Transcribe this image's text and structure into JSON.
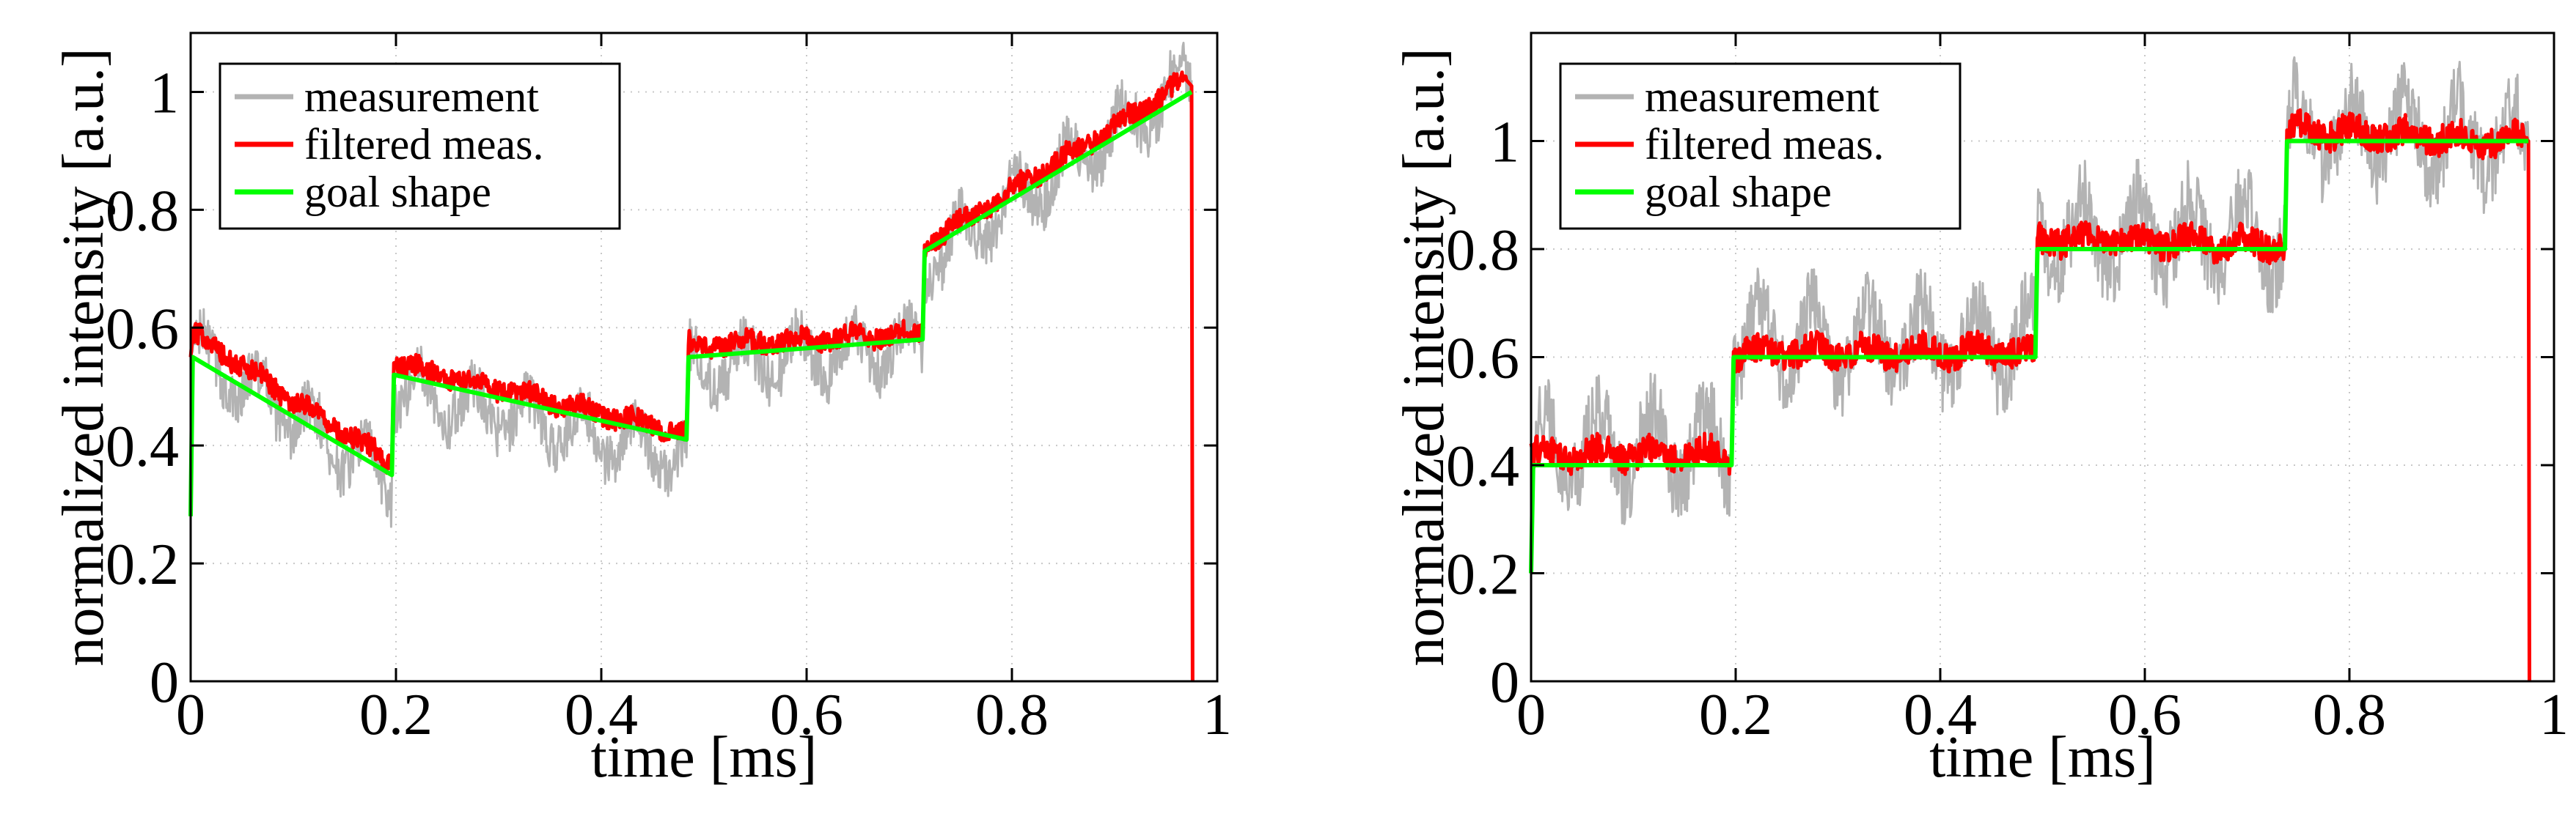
{
  "chart_data": [
    {
      "type": "line",
      "xlabel": "time [ms]",
      "ylabel": "normalized intensity [a.u.]",
      "xlim": [
        0,
        1
      ],
      "ylim": [
        0,
        1.1
      ],
      "xticks": [
        0,
        0.2,
        0.4,
        0.6,
        0.8,
        1
      ],
      "xtick_labels": [
        "0",
        "0.2",
        "0.4",
        "0.6",
        "0.8",
        "1"
      ],
      "yticks": [
        0,
        0.2,
        0.4,
        0.6,
        0.8,
        1
      ],
      "ytick_labels": [
        "0",
        "0.2",
        "0.4",
        "0.6",
        "0.8",
        "1"
      ],
      "grid": true,
      "legend_position": "top-left",
      "legend": [
        "measurement",
        "filtered meas.",
        "goal shape"
      ],
      "series": [
        {
          "name": "goal shape",
          "color": "#00ff00",
          "x": [
            0,
            0.002,
            0.196,
            0.198,
            0.483,
            0.485,
            0.713,
            0.715,
            0.975
          ],
          "y": [
            0.28,
            0.55,
            0.35,
            0.52,
            0.41,
            0.55,
            0.58,
            0.73,
            1.0
          ]
        },
        {
          "name": "filtered meas.",
          "color": "#ff0000",
          "x": [
            0,
            0.002,
            0.196,
            0.198,
            0.483,
            0.485,
            0.713,
            0.715,
            0.97,
            0.975,
            0.976
          ],
          "y": [
            0.55,
            0.59,
            0.37,
            0.54,
            0.42,
            0.57,
            0.59,
            0.74,
            1.02,
            1.01,
            0.0
          ]
        },
        {
          "name": "measurement",
          "color": "#b3b3b3",
          "x": [
            0,
            0.002,
            0.196,
            0.198,
            0.483,
            0.485,
            0.713,
            0.715,
            0.975
          ],
          "y": [
            0.55,
            0.56,
            0.34,
            0.5,
            0.38,
            0.53,
            0.57,
            0.71,
            1.02
          ]
        }
      ]
    },
    {
      "type": "line",
      "xlabel": "time [ms]",
      "ylabel": "normalized intensity [a.u.]",
      "xlim": [
        0,
        1
      ],
      "ylim": [
        0,
        1.2
      ],
      "xticks": [
        0,
        0.2,
        0.4,
        0.6,
        0.8,
        1
      ],
      "xtick_labels": [
        "0",
        "0.2",
        "0.4",
        "0.6",
        "0.8",
        "1"
      ],
      "yticks": [
        0,
        0.2,
        0.4,
        0.6,
        0.8,
        1
      ],
      "ytick_labels": [
        "0",
        "0.2",
        "0.4",
        "0.6",
        "0.8",
        "1"
      ],
      "grid": true,
      "legend_position": "top-left",
      "legend": [
        "measurement",
        "filtered meas.",
        "goal shape"
      ],
      "series": [
        {
          "name": "goal shape",
          "color": "#00ff00",
          "x": [
            0,
            0.002,
            0.196,
            0.198,
            0.493,
            0.495,
            0.737,
            0.739,
            0.975
          ],
          "y": [
            0.2,
            0.4,
            0.4,
            0.6,
            0.6,
            0.8,
            0.8,
            1.0,
            1.0
          ]
        },
        {
          "name": "filtered meas.",
          "color": "#ff0000",
          "x": [
            0,
            0.002,
            0.196,
            0.198,
            0.493,
            0.495,
            0.737,
            0.739,
            0.974,
            0.975,
            0.976
          ],
          "y": [
            0.44,
            0.42,
            0.42,
            0.61,
            0.61,
            0.82,
            0.81,
            1.02,
            1.0,
            1.0,
            0.0
          ]
        },
        {
          "name": "measurement",
          "color": "#b3b3b3",
          "x": [
            0,
            0.002,
            0.196,
            0.198,
            0.493,
            0.495,
            0.737,
            0.739,
            0.975
          ],
          "y": [
            0.44,
            0.43,
            0.43,
            0.63,
            0.62,
            0.83,
            0.82,
            1.02,
            1.0
          ]
        }
      ]
    }
  ]
}
